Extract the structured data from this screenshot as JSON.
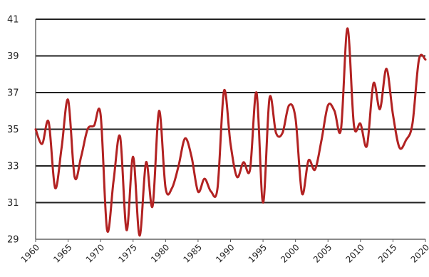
{
  "chart_data": {
    "type": "line",
    "title": "",
    "xlabel": "",
    "ylabel": "",
    "xlim": [
      1960,
      2020
    ],
    "ylim": [
      29,
      41
    ],
    "y_ticks": [
      29,
      31,
      33,
      35,
      37,
      39,
      41
    ],
    "x_ticks": [
      1960,
      1965,
      1970,
      1975,
      1980,
      1985,
      1990,
      1995,
      2000,
      2005,
      2010,
      2015,
      2020
    ],
    "grid": "horizontal",
    "legend": "none",
    "colors": {
      "line": "#b22222",
      "grid": "#222222"
    },
    "series": [
      {
        "x": [
          1960,
          1961,
          1962,
          1963,
          1964,
          1965,
          1966,
          1967,
          1968,
          1969,
          1970,
          1971,
          1972,
          1973,
          1974,
          1975,
          1976,
          1977,
          1978,
          1979,
          1980,
          1981,
          1982,
          1983,
          1984,
          1985,
          1986,
          1987,
          1988,
          1989,
          1990,
          1991,
          1992,
          1993,
          1994,
          1995,
          1996,
          1997,
          1998,
          1999,
          2000,
          2001,
          2002,
          2003,
          2004,
          2005,
          2006,
          2007,
          2008,
          2009,
          2010,
          2011,
          2012,
          2013,
          2014,
          2015,
          2016,
          2017,
          2018,
          2019,
          2020
        ],
        "y": [
          35.0,
          34.2,
          35.4,
          31.8,
          34.0,
          36.6,
          32.4,
          33.5,
          35.0,
          35.2,
          35.8,
          29.5,
          32.2,
          34.6,
          29.5,
          33.5,
          29.2,
          33.2,
          30.8,
          36.0,
          31.8,
          31.8,
          33.0,
          34.5,
          33.5,
          31.6,
          32.3,
          31.6,
          31.8,
          37.1,
          34.2,
          32.4,
          33.2,
          32.8,
          37.0,
          31.0,
          36.7,
          34.8,
          34.8,
          36.3,
          35.6,
          31.5,
          33.3,
          32.8,
          34.4,
          36.3,
          36.0,
          35.0,
          40.5,
          35.2,
          35.3,
          34.1,
          37.5,
          36.1,
          38.3,
          35.8,
          34.0,
          34.4,
          35.3,
          38.8,
          38.8
        ]
      }
    ]
  }
}
